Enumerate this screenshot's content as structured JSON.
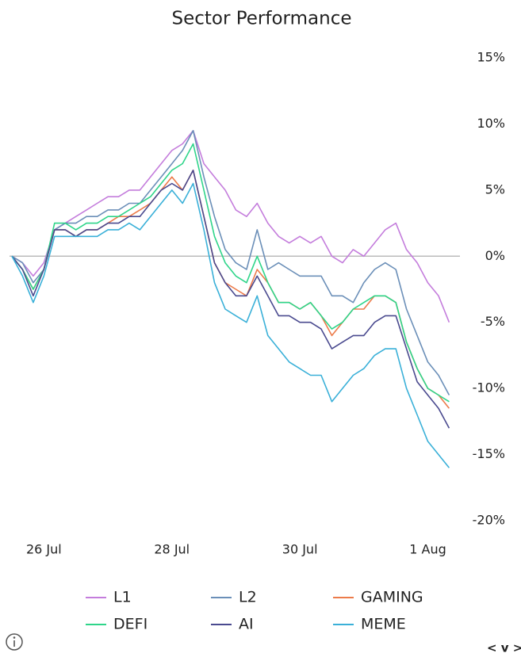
{
  "chart_data": {
    "type": "line",
    "title": "Sector Performance",
    "categories": [
      null,
      null,
      null,
      "26 Jul",
      null,
      null,
      null,
      null,
      null,
      null,
      null,
      null,
      null,
      null,
      null,
      "28 Jul",
      null,
      null,
      null,
      null,
      null,
      null,
      null,
      null,
      null,
      null,
      null,
      "30 Jul",
      null,
      null,
      null,
      null,
      null,
      null,
      null,
      null,
      null,
      null,
      null,
      "1 Aug",
      null,
      null
    ],
    "ylim": [
      -20,
      15
    ],
    "yticks": [
      {
        "value": -20,
        "label": "-20%"
      },
      {
        "value": -15,
        "label": "-15%"
      },
      {
        "value": -10,
        "label": "-10%"
      },
      {
        "value": -5,
        "label": "-5%"
      },
      {
        "value": 0,
        "label": "0%"
      },
      {
        "value": 5,
        "label": "5%"
      },
      {
        "value": 10,
        "label": "10%"
      },
      {
        "value": 15,
        "label": "15%"
      }
    ],
    "grid": false,
    "zero_line": true,
    "y_axis_side": "right",
    "series": [
      {
        "name": "L1",
        "color": "#c47ddc",
        "values": [
          0,
          -0.5,
          -1.5,
          -0.5,
          2,
          2.5,
          3,
          3.5,
          4,
          4.5,
          4.5,
          5,
          5,
          6,
          7,
          8,
          8.5,
          9.5,
          7,
          6,
          5,
          3.5,
          3,
          4,
          2.5,
          1.5,
          1,
          1.5,
          1,
          1.5,
          0,
          -0.5,
          0.5,
          0,
          1,
          2,
          2.5,
          0.5,
          -0.5,
          -2,
          -3,
          -5
        ]
      },
      {
        "name": "L2",
        "color": "#6b8fb8",
        "values": [
          0,
          -0.5,
          -2,
          -1,
          2,
          2.5,
          2.5,
          3,
          3,
          3.5,
          3.5,
          4,
          4,
          5,
          6,
          7,
          8,
          9.5,
          6,
          3,
          0.5,
          -0.5,
          -1,
          2,
          -1,
          -0.5,
          -1,
          -1.5,
          -1.5,
          -1.5,
          -3,
          -3,
          -3.5,
          -2,
          -1,
          -0.5,
          -1,
          -4,
          -6,
          -8,
          -9,
          -10.5
        ]
      },
      {
        "name": "GAMING",
        "color": "#ec7b4a",
        "values": [
          0,
          -1,
          -2.5,
          -1,
          2,
          2,
          1.5,
          2,
          2,
          2.5,
          3,
          3,
          3.5,
          4,
          5,
          6,
          5,
          6.5,
          3,
          -0.5,
          -2,
          -2.5,
          -3,
          -1,
          -2,
          -3.5,
          -3.5,
          -4,
          -3.5,
          -4.5,
          -6,
          -5,
          -4,
          -4,
          -3,
          -3,
          -3.5,
          -6.5,
          -8.5,
          -10,
          -10.5,
          -11.5
        ]
      },
      {
        "name": "DEFI",
        "color": "#2fd58a",
        "values": [
          0,
          -1,
          -2.5,
          -1,
          2.5,
          2.5,
          2,
          2.5,
          2.5,
          3,
          3,
          3.5,
          4,
          4.5,
          5.5,
          6.5,
          7,
          8.5,
          5,
          1.5,
          -0.5,
          -1.5,
          -2,
          0,
          -2,
          -3.5,
          -3.5,
          -4,
          -3.5,
          -4.5,
          -5.5,
          -5,
          -4,
          -3.5,
          -3,
          -3,
          -3.5,
          -6.5,
          -8.5,
          -10,
          -10.5,
          -11
        ]
      },
      {
        "name": "AI",
        "color": "#4a4a8f",
        "values": [
          0,
          -1,
          -3,
          -1,
          2,
          2,
          1.5,
          2,
          2,
          2.5,
          2.5,
          3,
          3,
          4,
          5,
          5.5,
          5,
          6.5,
          3,
          -0.5,
          -2,
          -3,
          -3,
          -1.5,
          -3,
          -4.5,
          -4.5,
          -5,
          -5,
          -5.5,
          -7,
          -6.5,
          -6,
          -6,
          -5,
          -4.5,
          -4.5,
          -7,
          -9.5,
          -10.5,
          -11.5,
          -13
        ]
      },
      {
        "name": "MEME",
        "color": "#3ab0d8",
        "values": [
          0,
          -1.5,
          -3.5,
          -1.5,
          1.5,
          1.5,
          1.5,
          1.5,
          1.5,
          2,
          2,
          2.5,
          2,
          3,
          4,
          5,
          4,
          5.5,
          2,
          -2,
          -4,
          -4.5,
          -5,
          -3,
          -6,
          -7,
          -8,
          -8.5,
          -9,
          -9,
          -11,
          -10,
          -9,
          -8.5,
          -7.5,
          -7,
          -7,
          -10,
          -12,
          -14,
          -15,
          -16
        ]
      }
    ]
  },
  "footer_controls": "< v >"
}
